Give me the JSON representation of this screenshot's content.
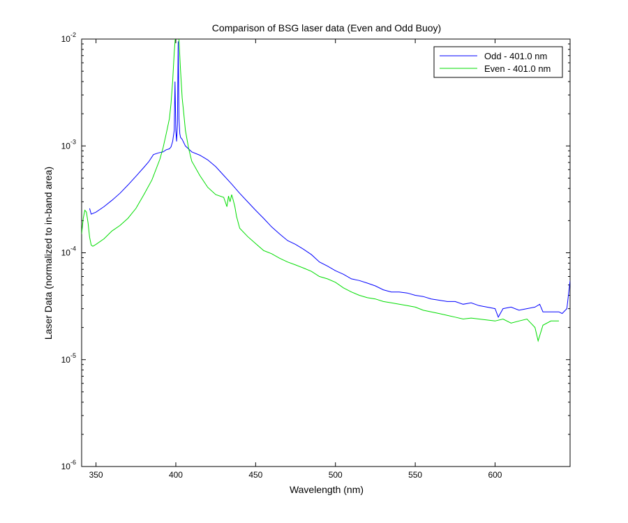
{
  "chart_data": {
    "type": "line",
    "title": "Comparison of BSG laser data (Even and Odd Buoy)",
    "xlabel": "Wavelength (nm)",
    "ylabel": "Laser Data (normalized to in-band area)",
    "xlim": [
      341,
      647
    ],
    "ylim": [
      1e-06,
      0.01
    ],
    "yscale": "log",
    "grid": false,
    "legend_position": "top-right",
    "xticks": [
      350,
      400,
      450,
      500,
      550,
      600
    ],
    "yticks": [
      {
        "base": "10",
        "exp": "-6",
        "value": 1e-06
      },
      {
        "base": "10",
        "exp": "-5",
        "value": 1e-05
      },
      {
        "base": "10",
        "exp": "-4",
        "value": 0.0001
      },
      {
        "base": "10",
        "exp": "-3",
        "value": 0.001
      },
      {
        "base": "10",
        "exp": "-2",
        "value": 0.01
      }
    ],
    "series": [
      {
        "name": "Odd - 401.0 nm",
        "color": "#0000ff",
        "x": [
          346,
          347,
          350,
          355,
          360,
          365,
          370,
          375,
          380,
          383,
          386,
          389,
          392,
          394,
          396,
          397,
          398,
          399,
          399.5,
          400,
          400.5,
          401,
          401.5,
          402,
          402.5,
          403,
          404,
          406,
          410,
          415,
          420,
          425,
          430,
          435,
          440,
          445,
          450,
          455,
          460,
          465,
          470,
          475,
          480,
          485,
          490,
          495,
          500,
          505,
          510,
          515,
          520,
          525,
          530,
          535,
          540,
          545,
          550,
          555,
          560,
          565,
          570,
          575,
          580,
          585,
          590,
          595,
          600,
          602,
          605,
          610,
          615,
          620,
          625,
          628,
          630,
          635,
          640,
          642,
          645,
          647
        ],
        "y": [
          0.00026,
          0.00023,
          0.00024,
          0.00027,
          0.00031,
          0.00036,
          0.00043,
          0.00052,
          0.00063,
          0.00071,
          0.00083,
          0.00086,
          0.00088,
          0.00092,
          0.00094,
          0.00098,
          0.0011,
          0.0014,
          0.004,
          0.0014,
          0.0011,
          0.0016,
          0.0095,
          0.0018,
          0.0013,
          0.0012,
          0.00115,
          0.001,
          0.00088,
          0.00082,
          0.00074,
          0.00064,
          0.00053,
          0.00044,
          0.00036,
          0.0003,
          0.00025,
          0.00021,
          0.000175,
          0.00015,
          0.00013,
          0.00012,
          0.000108,
          9.6e-05,
          8.2e-05,
          7.5e-05,
          6.8e-05,
          6.3e-05,
          5.7e-05,
          5.5e-05,
          5.2e-05,
          4.9e-05,
          4.5e-05,
          4.3e-05,
          4.3e-05,
          4.2e-05,
          4e-05,
          3.9e-05,
          3.7e-05,
          3.6e-05,
          3.5e-05,
          3.5e-05,
          3.3e-05,
          3.4e-05,
          3.2e-05,
          3.1e-05,
          3e-05,
          2.5e-05,
          3e-05,
          3.1e-05,
          2.9e-05,
          3e-05,
          3.1e-05,
          3.3e-05,
          2.8e-05,
          2.8e-05,
          2.8e-05,
          2.7e-05,
          3e-05,
          5.5e-05
        ]
      },
      {
        "name": "Even - 401.0 nm",
        "color": "#00dd00",
        "x": [
          341,
          342,
          343,
          344,
          345,
          346,
          347,
          348,
          350,
          355,
          360,
          365,
          370,
          375,
          380,
          385,
          390,
          392,
          394,
          396,
          397,
          398,
          399,
          400,
          400.5,
          401,
          401.5,
          402,
          403,
          404,
          405,
          406,
          408,
          410,
          415,
          420,
          425,
          430,
          432,
          433,
          434,
          435,
          436,
          437,
          438,
          440,
          445,
          450,
          455,
          460,
          465,
          470,
          475,
          480,
          485,
          490,
          495,
          500,
          505,
          510,
          515,
          520,
          525,
          530,
          535,
          540,
          545,
          550,
          555,
          560,
          565,
          570,
          575,
          580,
          585,
          590,
          595,
          600,
          605,
          610,
          615,
          620,
          625,
          627,
          630,
          635,
          640
        ],
        "y": [
          0.00015,
          0.00021,
          0.00025,
          0.00024,
          0.00019,
          0.00014,
          0.000118,
          0.000115,
          0.00012,
          0.000135,
          0.00016,
          0.00018,
          0.00021,
          0.00026,
          0.00035,
          0.00048,
          0.00075,
          0.00096,
          0.0013,
          0.0018,
          0.0025,
          0.004,
          0.0075,
          0.012,
          0.012,
          0.012,
          0.012,
          0.0098,
          0.005,
          0.0028,
          0.002,
          0.0014,
          0.00095,
          0.00072,
          0.00053,
          0.00041,
          0.00035,
          0.00033,
          0.00027,
          0.00034,
          0.0003,
          0.00035,
          0.00031,
          0.00027,
          0.00022,
          0.00017,
          0.000142,
          0.000122,
          0.000105,
          9.8e-05,
          8.9e-05,
          8.2e-05,
          7.7e-05,
          7.2e-05,
          6.7e-05,
          6e-05,
          5.7e-05,
          5.3e-05,
          4.7e-05,
          4.3e-05,
          4e-05,
          3.8e-05,
          3.7e-05,
          3.5e-05,
          3.4e-05,
          3.3e-05,
          3.2e-05,
          3.1e-05,
          2.9e-05,
          2.8e-05,
          2.7e-05,
          2.6e-05,
          2.5e-05,
          2.4e-05,
          2.45e-05,
          2.4e-05,
          2.35e-05,
          2.3e-05,
          2.4e-05,
          2.2e-05,
          2.3e-05,
          2.4e-05,
          2e-05,
          1.5e-05,
          2.1e-05,
          2.3e-05,
          2.3e-05
        ]
      }
    ]
  }
}
